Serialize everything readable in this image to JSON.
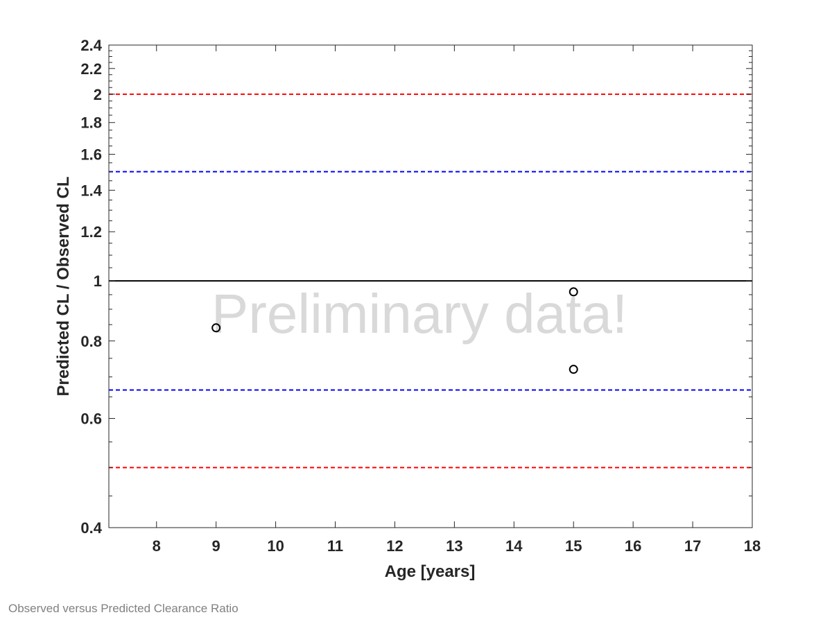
{
  "chart_data": {
    "type": "scatter",
    "xlabel": "Age [years]",
    "ylabel": "Predicted CL / Observed CL",
    "xlim": [
      7.2,
      18
    ],
    "ylim": [
      0.4,
      2.4
    ],
    "y_scale": "log",
    "x_ticks": [
      8,
      9,
      10,
      11,
      12,
      13,
      14,
      15,
      16,
      17,
      18
    ],
    "y_ticks": [
      0.4,
      0.6,
      0.8,
      1,
      1.2,
      1.4,
      1.6,
      1.8,
      2,
      2.2,
      2.4
    ],
    "x_tick_labels": [
      "8",
      "9",
      "10",
      "11",
      "12",
      "13",
      "14",
      "15",
      "16",
      "17",
      "18"
    ],
    "y_tick_labels": [
      "0.4",
      "0.6",
      "0.8",
      "1",
      "1.2",
      "1.4",
      "1.6",
      "1.8",
      "2",
      "2.2",
      "2.4"
    ],
    "grid": false,
    "points": [
      {
        "x": 9,
        "y": 0.84
      },
      {
        "x": 15,
        "y": 0.96
      },
      {
        "x": 15,
        "y": 0.72
      }
    ],
    "reference_lines": [
      {
        "y": 1,
        "color": "#000000",
        "style": "solid"
      },
      {
        "y": 1.5,
        "color": "#0000ff",
        "style": "dashed"
      },
      {
        "y": 0.6667,
        "color": "#0000ff",
        "style": "dashed"
      },
      {
        "y": 2,
        "color": "#ff0000",
        "style": "dashed"
      },
      {
        "y": 0.5,
        "color": "#ff0000",
        "style": "dashed"
      }
    ],
    "watermark": "Preliminary data!"
  },
  "caption": "Observed versus Predicted Clearance Ratio"
}
